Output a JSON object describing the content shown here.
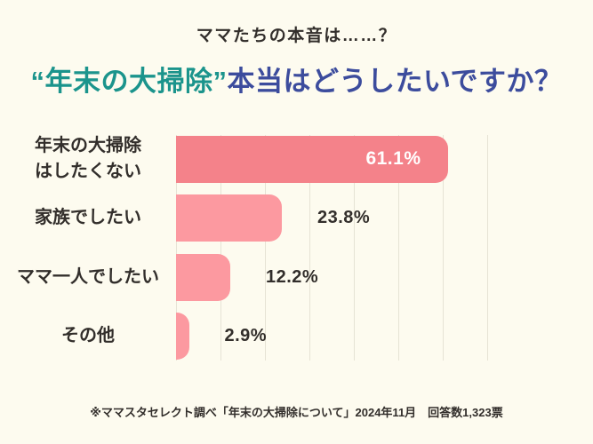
{
  "header": {
    "subtitle": "ママたちの本音は……？",
    "title_emphasis": "“年末の大掃除”",
    "title_rest": "本当はどうしたいですか？"
  },
  "chart_data": {
    "type": "bar",
    "orientation": "horizontal",
    "title": "“年末の大掃除”本当はどうしたいですか？",
    "categories": [
      "年末の大掃除\nはしたくない",
      "家族でしたい",
      "ママ一人でしたい",
      "その他"
    ],
    "values": [
      61.1,
      23.8,
      12.2,
      2.9
    ],
    "value_labels": [
      "61.1%",
      "23.8%",
      "12.2%",
      "2.9%"
    ],
    "unit": "%",
    "xlim": [
      0,
      70
    ],
    "gridline_step": 10,
    "grid": true,
    "legend": false,
    "emphasis_index": 0,
    "bar_colors": {
      "emphasis": "#F4828A",
      "normal": "#FC99A0"
    },
    "value_label_inside": [
      true,
      false,
      false,
      false
    ]
  },
  "footer": {
    "note": "※ママスタセレクト調べ「年末の大掃除について」2024年11月　回答数1,323票"
  },
  "colors": {
    "background": "#FDFBEF",
    "title_accent": "#1B948C",
    "title_main": "#3C4C9D",
    "bar_emphasis": "#F4828A",
    "bar_normal": "#FC99A0",
    "gridline": "#E6E3D5",
    "text": "#322E2B",
    "value_label_inside_color": "#FFFFFF"
  }
}
